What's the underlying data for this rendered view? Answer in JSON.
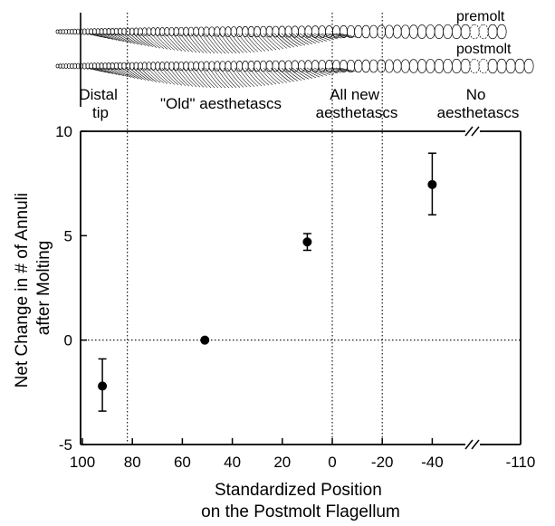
{
  "chart_data": {
    "type": "scatter",
    "xlabel": [
      "Standardized Position",
      "on the Postmolt Flagellum"
    ],
    "ylabel": [
      "Net Change in # of Annuli",
      "after Molting"
    ],
    "xlim": [
      100,
      -110
    ],
    "ylim": [
      -5,
      10
    ],
    "x_ticks": [
      "100",
      "80",
      "60",
      "40",
      "20",
      "0",
      "-20",
      "-40",
      "-110"
    ],
    "y_ticks": [
      "10",
      "5",
      "0",
      "-5"
    ],
    "x_axis_break": true,
    "region_labels": [
      [
        "Distal",
        "tip"
      ],
      [
        "\"Old\" aesthetascs"
      ],
      [
        "All new",
        "aesthetascs"
      ],
      [
        "No",
        "aesthetascs"
      ]
    ],
    "diagram_labels": [
      "premolt",
      "postmolt"
    ],
    "points": [
      {
        "x": 92,
        "y": -2.2,
        "err_low": -3.4,
        "err_high": -0.9
      },
      {
        "x": 51,
        "y": 0.0,
        "err_low": null,
        "err_high": null
      },
      {
        "x": 10,
        "y": 4.7,
        "err_low": 4.3,
        "err_high": 5.1
      },
      {
        "x": -40,
        "y": 7.45,
        "err_low": 6.0,
        "err_high": 8.95
      }
    ],
    "reference_lines": {
      "x": [
        82,
        0,
        -20
      ],
      "y": [
        0
      ]
    }
  }
}
